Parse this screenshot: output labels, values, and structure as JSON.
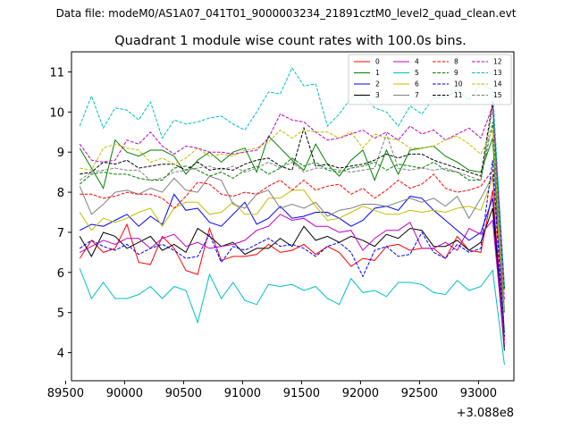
{
  "suptitle": "Data file: modeM0/AS1A07_041T01_9000003234_21891cztM0_level2_quad_clean.evt",
  "chart_data": {
    "type": "line",
    "title": "Quadrant 1 module wise count rates with 100.0s bins.",
    "xlabel": "",
    "ylabel": "",
    "x_offset_label": "+3.088e8",
    "xlim": [
      89550,
      93300
    ],
    "ylim": [
      3.3,
      11.5
    ],
    "xticks": [
      89500,
      90000,
      90500,
      91000,
      91500,
      92000,
      92500,
      93000
    ],
    "xtick_labels": [
      "89500",
      "90000",
      "90500",
      "91000",
      "91500",
      "92000",
      "92500",
      "93000"
    ],
    "yticks": [
      4,
      5,
      6,
      7,
      8,
      9,
      10,
      11
    ],
    "ytick_labels": [
      "4",
      "5",
      "6",
      "7",
      "8",
      "9",
      "10",
      "11"
    ],
    "grid": false,
    "legend_position": "top-right",
    "x": [
      89620,
      89720,
      89820,
      89920,
      90020,
      90120,
      90220,
      90320,
      90420,
      90520,
      90620,
      90720,
      90820,
      90920,
      91020,
      91120,
      91220,
      91320,
      91420,
      91520,
      91620,
      91720,
      91820,
      91920,
      92020,
      92120,
      92220,
      92320,
      92420,
      92520,
      92620,
      92720,
      92820,
      92920,
      93020,
      93120,
      93220
    ],
    "series": [
      {
        "name": "0",
        "color": "#ff0000",
        "dash": "solid",
        "values": [
          6.35,
          6.8,
          6.5,
          6.6,
          7.2,
          6.25,
          6.2,
          6.9,
          6.6,
          6.05,
          5.95,
          7.1,
          6.3,
          6.4,
          6.4,
          6.45,
          6.7,
          6.5,
          6.55,
          6.7,
          6.45,
          6.65,
          6.5,
          6.15,
          6.35,
          6.3,
          6.65,
          6.7,
          6.55,
          6.6,
          6.6,
          6.35,
          6.9,
          6.55,
          6.5,
          8.05,
          4.3
        ]
      },
      {
        "name": "1",
        "color": "#008000",
        "dash": "solid",
        "values": [
          9.1,
          8.6,
          8.1,
          9.3,
          9.0,
          8.9,
          9.05,
          9.05,
          8.9,
          8.45,
          8.8,
          9.0,
          8.75,
          9.0,
          9.1,
          8.5,
          9.4,
          9.1,
          8.8,
          8.55,
          9.2,
          8.7,
          8.4,
          8.8,
          9.05,
          8.3,
          9.05,
          8.45,
          9.05,
          9.1,
          9.15,
          8.9,
          8.75,
          8.55,
          8.5,
          9.35,
          4.5
        ]
      },
      {
        "name": "2",
        "color": "#0000ff",
        "dash": "solid",
        "values": [
          7.05,
          7.2,
          7.15,
          7.3,
          7.45,
          7.15,
          7.4,
          7.2,
          7.95,
          7.55,
          7.6,
          7.25,
          7.15,
          7.45,
          7.75,
          7.2,
          7.35,
          7.65,
          7.35,
          7.4,
          7.5,
          7.5,
          7.35,
          7.15,
          7.3,
          7.6,
          7.65,
          7.55,
          7.9,
          7.85,
          7.55,
          7.3,
          7.05,
          6.8,
          7.0,
          7.85,
          4.15
        ]
      },
      {
        "name": "3",
        "color": "#000000",
        "dash": "solid",
        "values": [
          6.9,
          6.4,
          7.0,
          6.9,
          6.6,
          6.75,
          6.9,
          6.55,
          6.7,
          6.5,
          7.1,
          6.9,
          6.65,
          6.75,
          6.45,
          6.6,
          6.6,
          6.85,
          6.65,
          7.15,
          6.8,
          6.9,
          6.75,
          6.9,
          6.8,
          6.65,
          6.95,
          6.85,
          7.1,
          7.05,
          6.65,
          6.65,
          6.8,
          6.55,
          6.75,
          7.6,
          4.05
        ]
      },
      {
        "name": "4",
        "color": "#bf00bf",
        "dash": "solid",
        "values": [
          6.5,
          6.65,
          6.8,
          6.7,
          6.85,
          6.85,
          6.6,
          6.85,
          6.95,
          6.65,
          6.75,
          6.6,
          6.65,
          6.7,
          6.8,
          7.05,
          7.15,
          7.45,
          7.3,
          7.35,
          7.15,
          7.15,
          7.0,
          7.05,
          6.55,
          6.85,
          7.05,
          7.05,
          7.25,
          6.6,
          6.6,
          6.75,
          6.55,
          7.1,
          6.95,
          7.3,
          4.2
        ]
      },
      {
        "name": "5",
        "color": "#00bfbf",
        "dash": "solid",
        "values": [
          6.1,
          5.35,
          5.75,
          5.35,
          5.35,
          5.45,
          5.65,
          5.35,
          5.65,
          5.55,
          4.75,
          5.95,
          5.35,
          5.75,
          5.3,
          5.2,
          5.7,
          5.65,
          5.7,
          5.55,
          5.65,
          5.35,
          5.2,
          5.85,
          5.5,
          5.55,
          5.4,
          5.75,
          5.75,
          5.7,
          5.5,
          5.45,
          5.8,
          5.55,
          5.65,
          6.05,
          3.7
        ]
      },
      {
        "name": "6",
        "color": "#bfbf00",
        "dash": "solid",
        "values": [
          7.5,
          7.05,
          7.35,
          7.25,
          7.35,
          7.5,
          7.6,
          7.15,
          7.6,
          7.75,
          7.75,
          7.45,
          7.5,
          7.75,
          7.45,
          7.45,
          7.85,
          7.85,
          8.05,
          8.05,
          7.65,
          7.3,
          7.35,
          7.5,
          7.65,
          7.55,
          7.45,
          7.45,
          7.55,
          7.5,
          7.55,
          7.5,
          7.6,
          7.65,
          7.55,
          8.35,
          5.55
        ]
      },
      {
        "name": "7",
        "color": "#808080",
        "dash": "solid",
        "values": [
          8.15,
          7.45,
          7.7,
          8.0,
          8.05,
          7.95,
          8.1,
          8.0,
          8.35,
          8.05,
          8.0,
          8.4,
          8.3,
          7.7,
          7.6,
          7.95,
          8.05,
          7.6,
          7.7,
          7.6,
          7.75,
          7.4,
          7.55,
          7.6,
          7.7,
          7.7,
          7.65,
          7.75,
          7.85,
          7.75,
          7.85,
          7.65,
          7.9,
          7.35,
          7.85,
          8.4,
          5.1
        ]
      },
      {
        "name": "8",
        "color": "#ff0000",
        "dash": "dashed",
        "values": [
          7.95,
          7.95,
          7.85,
          7.9,
          8.0,
          7.95,
          7.95,
          7.85,
          7.6,
          7.9,
          8.25,
          8.2,
          7.95,
          7.9,
          8.0,
          7.95,
          8.15,
          8.3,
          8.05,
          8.3,
          8.05,
          8.15,
          8.2,
          7.95,
          8.1,
          7.85,
          8.05,
          8.3,
          8.1,
          8.2,
          8.45,
          8.1,
          8.0,
          8.05,
          8.15,
          8.55,
          4.4
        ]
      },
      {
        "name": "9",
        "color": "#008000",
        "dash": "dashed",
        "values": [
          8.2,
          8.45,
          8.5,
          8.45,
          8.45,
          8.35,
          8.3,
          8.3,
          8.6,
          8.65,
          8.55,
          8.4,
          8.5,
          8.35,
          8.55,
          8.65,
          8.45,
          8.6,
          8.85,
          8.65,
          8.75,
          8.55,
          8.5,
          8.6,
          8.65,
          8.75,
          8.55,
          8.7,
          8.65,
          8.6,
          8.75,
          8.55,
          8.5,
          8.3,
          8.3,
          9.75,
          5.0
        ]
      },
      {
        "name": "10",
        "color": "#0000ff",
        "dash": "dashed",
        "values": [
          6.6,
          6.8,
          6.65,
          6.55,
          6.7,
          6.45,
          6.6,
          6.7,
          6.55,
          6.35,
          6.4,
          6.95,
          6.25,
          6.65,
          6.55,
          6.7,
          6.85,
          6.65,
          6.7,
          6.6,
          6.4,
          6.65,
          6.75,
          6.5,
          5.9,
          6.55,
          6.65,
          6.4,
          6.45,
          7.0,
          6.5,
          6.35,
          6.7,
          6.5,
          6.6,
          8.8,
          4.4
        ]
      },
      {
        "name": "11",
        "color": "#000000",
        "dash": "dashed",
        "values": [
          8.45,
          8.5,
          8.75,
          8.7,
          8.8,
          8.6,
          8.65,
          8.7,
          8.7,
          8.55,
          8.75,
          8.55,
          8.6,
          8.55,
          8.7,
          8.8,
          8.85,
          8.65,
          8.55,
          9.6,
          8.65,
          8.7,
          8.6,
          8.65,
          8.7,
          8.8,
          8.95,
          8.85,
          8.95,
          8.95,
          8.8,
          8.7,
          8.6,
          8.5,
          8.4,
          10.25,
          5.6
        ]
      },
      {
        "name": "12",
        "color": "#bf00bf",
        "dash": "dashed",
        "values": [
          9.2,
          8.8,
          8.75,
          8.8,
          9.3,
          9.2,
          9.5,
          9.15,
          8.95,
          9.15,
          9.1,
          9.0,
          9.0,
          8.95,
          9.0,
          9.05,
          9.35,
          9.95,
          9.8,
          9.75,
          9.5,
          9.3,
          9.35,
          9.45,
          9.55,
          9.35,
          9.5,
          9.3,
          9.65,
          9.45,
          9.55,
          9.3,
          9.45,
          9.6,
          9.35,
          10.15,
          5.3
        ]
      },
      {
        "name": "13",
        "color": "#00bfbf",
        "dash": "dashed",
        "values": [
          9.65,
          10.4,
          9.6,
          10.1,
          10.05,
          9.8,
          10.25,
          9.35,
          9.8,
          9.7,
          9.75,
          9.85,
          9.9,
          9.7,
          9.55,
          10.0,
          10.5,
          10.45,
          11.1,
          10.65,
          10.7,
          9.65,
          9.95,
          10.35,
          10.45,
          10.1,
          10.0,
          9.65,
          10.15,
          9.95,
          10.35,
          10.35,
          10.55,
          10.3,
          10.7,
          10.55,
          5.65
        ]
      },
      {
        "name": "14",
        "color": "#bfbf00",
        "dash": "dashed",
        "values": [
          8.6,
          8.55,
          9.1,
          9.2,
          9.1,
          9.05,
          8.75,
          8.85,
          8.7,
          8.85,
          9.1,
          8.9,
          8.95,
          8.9,
          9.05,
          9.1,
          9.25,
          9.55,
          9.35,
          9.55,
          9.5,
          9.5,
          9.35,
          9.5,
          9.1,
          9.45,
          9.35,
          9.3,
          9.1,
          9.1,
          9.15,
          9.3,
          9.4,
          9.2,
          8.95,
          9.55,
          5.05
        ]
      },
      {
        "name": "15",
        "color": "#808080",
        "dash": "dashed",
        "values": [
          8.3,
          8.5,
          8.55,
          8.6,
          8.55,
          8.55,
          8.3,
          8.35,
          8.5,
          8.55,
          8.6,
          8.65,
          8.55,
          8.65,
          8.5,
          8.6,
          8.75,
          8.6,
          8.75,
          8.5,
          8.6,
          8.6,
          8.55,
          8.5,
          8.55,
          8.6,
          9.45,
          8.6,
          8.55,
          8.6,
          8.55,
          8.6,
          8.5,
          8.4,
          8.3,
          10.1,
          5.0
        ]
      }
    ]
  }
}
